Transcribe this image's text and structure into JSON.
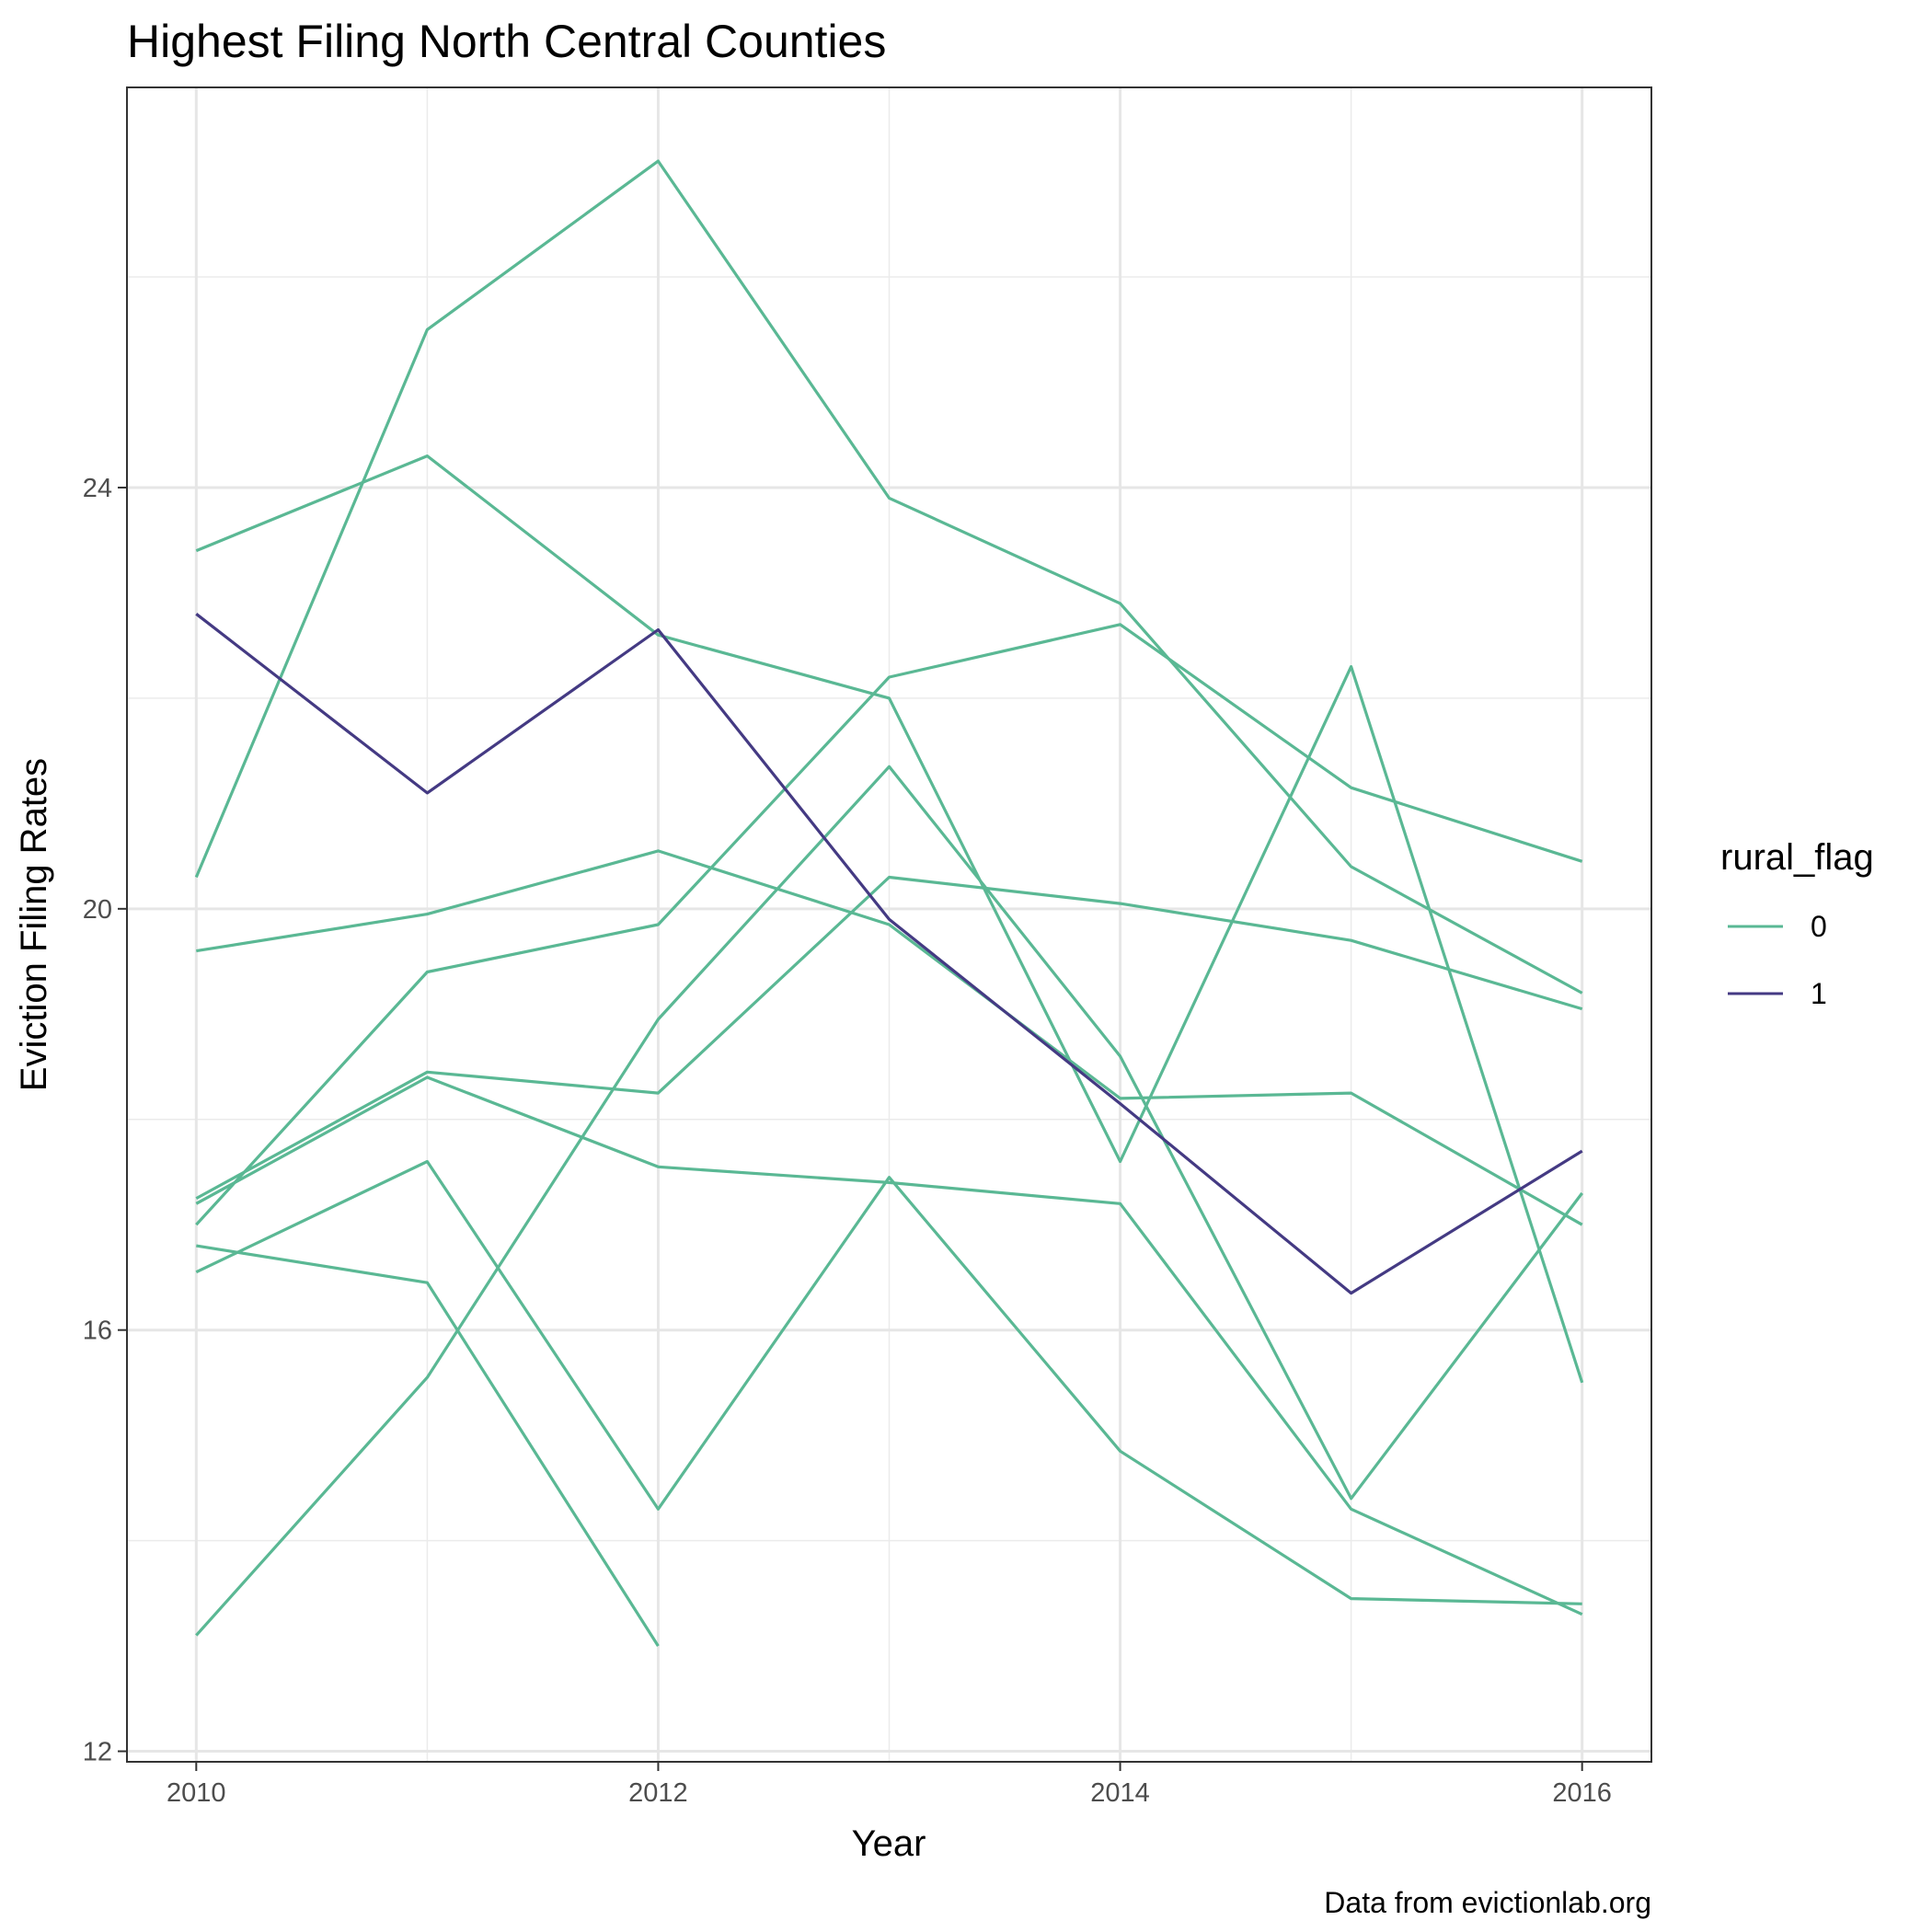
{
  "chart_data": {
    "type": "line",
    "title": "Highest Filing North Central Counties",
    "xlabel": "Year",
    "ylabel": "Eviction Filing Rates",
    "caption": "Data from evictionlab.org",
    "x_ticks": [
      "2010",
      "2012",
      "2014",
      "2016"
    ],
    "y_ticks": [
      "12",
      "16",
      "20",
      "24"
    ],
    "xlim": [
      2009.7,
      2016.3
    ],
    "ylim": [
      11.9,
      27.8
    ],
    "grid": true,
    "legend": {
      "title": "rural_flag",
      "placement": "right",
      "entries": [
        {
          "label": "0",
          "color": "#5ab894"
        },
        {
          "label": "1",
          "color": "#443a83"
        }
      ]
    },
    "x": [
      2010,
      2011,
      2012,
      2013,
      2014,
      2015,
      2016
    ],
    "series": [
      {
        "group": "0",
        "values": [
          20.3,
          25.5,
          27.1,
          23.9,
          22.9,
          20.4,
          19.2
        ]
      },
      {
        "group": "0",
        "values": [
          23.4,
          24.3,
          22.6,
          22.0,
          17.6,
          22.3,
          15.5
        ]
      },
      {
        "group": "0",
        "values": [
          19.6,
          19.95,
          20.55,
          19.85,
          18.2,
          18.25,
          17.0
        ]
      },
      {
        "group": "0",
        "values": [
          17.25,
          18.45,
          18.25,
          20.3,
          20.05,
          19.7,
          19.05
        ]
      },
      {
        "group": "0",
        "values": [
          17.0,
          19.4,
          19.85,
          22.2,
          22.7,
          21.15,
          20.45
        ]
      },
      {
        "group": "0",
        "values": [
          17.2,
          18.4,
          17.55,
          17.4,
          17.2,
          14.3,
          13.3
        ]
      },
      {
        "group": "0",
        "values": [
          16.8,
          16.45,
          13.0,
          null,
          null,
          null,
          null
        ]
      },
      {
        "group": "0",
        "values": [
          16.55,
          17.6,
          14.3,
          17.45,
          14.85,
          13.45,
          13.4
        ]
      },
      {
        "group": "0",
        "values": [
          13.1,
          15.55,
          18.95,
          21.35,
          18.6,
          14.4,
          17.3
        ]
      },
      {
        "group": "1",
        "values": [
          22.8,
          21.1,
          22.65,
          19.9,
          18.15,
          16.35,
          17.7
        ]
      }
    ]
  }
}
